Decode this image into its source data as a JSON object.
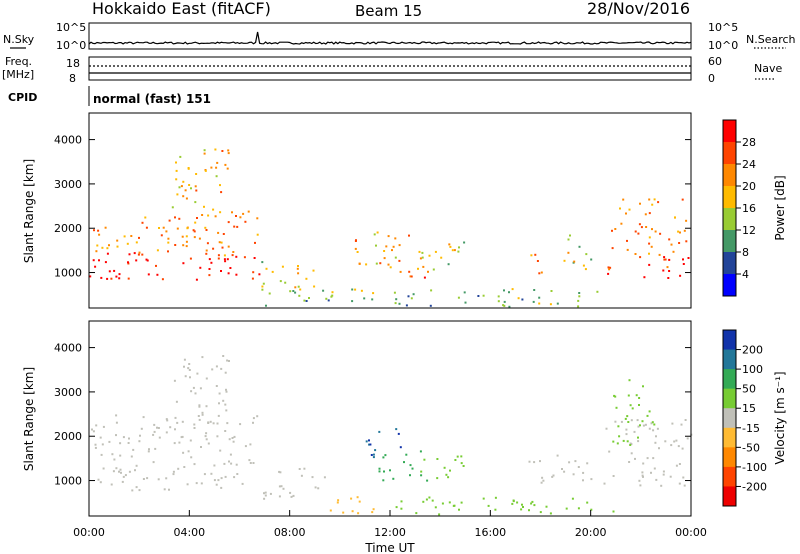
{
  "header": {
    "title": "Hokkaido East (fitACF)",
    "beam": "Beam 15",
    "date": "28/Nov/2016"
  },
  "top_panel": {
    "nsky_label": "N.Sky",
    "nsearch_label": "N.Search",
    "freq_label": "Freq.",
    "freq_unit": "[MHz]",
    "nave_label": "Nave",
    "cpid_label": "CPID",
    "cpid_value": "normal (fast) 151",
    "noise_ticks_left": [
      "10^5",
      "10^0"
    ],
    "noise_ticks_right": [
      "10^5",
      "10^0"
    ],
    "freq_ticks": [
      "18",
      "8"
    ],
    "nave_ticks": [
      "60",
      "0"
    ]
  },
  "power_scale": {
    "label": "Power [dB]",
    "ticks": [
      "28",
      "24",
      "20",
      "16",
      "12",
      "8",
      "4"
    ],
    "colors": [
      "#ff0000",
      "#ff4400",
      "#ff8800",
      "#ffbb00",
      "#99cc33",
      "#449966",
      "#224499",
      "#0000ff"
    ]
  },
  "velocity_scale": {
    "label": "Velocity [m s⁻¹]",
    "ticks": [
      "200",
      "100",
      "50",
      "15",
      "-15",
      "-50",
      "-100",
      "-200"
    ],
    "colors": [
      "#1133aa",
      "#227799",
      "#33aa55",
      "#77cc33",
      "#c0c0b8",
      "#ffbb33",
      "#ff8800",
      "#ff4400",
      "#ee0000"
    ]
  },
  "chart_data": [
    {
      "type": "heatmap",
      "name": "power",
      "xlabel": "",
      "ylabel": "Slant Range [km]",
      "x_range": [
        0,
        24
      ],
      "ylim": [
        200,
        4600
      ],
      "yticks": [
        "1000",
        "2000",
        "3000",
        "4000"
      ],
      "xticks": [
        "00:00",
        "04:00",
        "08:00",
        "12:00",
        "16:00",
        "20:00",
        "00:00"
      ],
      "grid": false,
      "blobs": [
        {
          "t0": 0.0,
          "t1": 6.8,
          "r0": 850,
          "r1": 1500,
          "v": 30
        },
        {
          "t0": 0.0,
          "t1": 6.8,
          "r0": 1400,
          "r1": 2400,
          "v": 22
        },
        {
          "t0": 3.3,
          "t1": 5.6,
          "r0": 2300,
          "r1": 3900,
          "v": 20
        },
        {
          "t0": 6.8,
          "t1": 9.0,
          "r0": 600,
          "r1": 1300,
          "v": 16
        },
        {
          "t0": 10.5,
          "t1": 13.0,
          "r0": 1200,
          "r1": 2000,
          "v": 20
        },
        {
          "t0": 11.5,
          "t1": 13.5,
          "r0": 900,
          "r1": 1300,
          "v": 24
        },
        {
          "t0": 13.0,
          "t1": 15.0,
          "r0": 1000,
          "r1": 1800,
          "v": 16
        },
        {
          "t0": 17.5,
          "t1": 18.2,
          "r0": 900,
          "r1": 1500,
          "v": 22
        },
        {
          "t0": 18.8,
          "t1": 20.0,
          "r0": 1100,
          "r1": 1900,
          "v": 16
        },
        {
          "t0": 20.5,
          "t1": 24.0,
          "r0": 900,
          "r1": 1400,
          "v": 28
        },
        {
          "t0": 20.8,
          "t1": 23.8,
          "r0": 1400,
          "r1": 2700,
          "v": 22
        },
        {
          "t0": 6.8,
          "t1": 20.5,
          "r0": 250,
          "r1": 650,
          "v": 12
        }
      ]
    },
    {
      "type": "heatmap",
      "name": "velocity",
      "xlabel": "Time UT",
      "ylabel": "Slant Range [km]",
      "x_range": [
        0,
        24
      ],
      "ylim": [
        200,
        4600
      ],
      "yticks": [
        "1000",
        "2000",
        "3000",
        "4000"
      ],
      "xticks": [
        "00:00",
        "04:00",
        "08:00",
        "12:00",
        "16:00",
        "20:00",
        "00:00"
      ],
      "grid": false,
      "blobs": [
        {
          "t0": 0.0,
          "t1": 6.8,
          "r0": 800,
          "r1": 2500,
          "v": 0
        },
        {
          "t0": 3.3,
          "t1": 5.6,
          "r0": 2300,
          "r1": 3900,
          "v": 0
        },
        {
          "t0": 6.8,
          "t1": 9.5,
          "r0": 600,
          "r1": 1300,
          "v": 0
        },
        {
          "t0": 11.0,
          "t1": 12.5,
          "r0": 1500,
          "r1": 2200,
          "v": 200
        },
        {
          "t0": 11.5,
          "t1": 13.5,
          "r0": 1000,
          "r1": 1700,
          "v": 80
        },
        {
          "t0": 13.0,
          "t1": 15.0,
          "r0": 1000,
          "r1": 1600,
          "v": 40
        },
        {
          "t0": 9.5,
          "t1": 12.0,
          "r0": 250,
          "r1": 650,
          "v": -40
        },
        {
          "t0": 12.0,
          "t1": 21.0,
          "r0": 250,
          "r1": 650,
          "v": 25
        },
        {
          "t0": 17.5,
          "t1": 20.0,
          "r0": 900,
          "r1": 1600,
          "v": 0
        },
        {
          "t0": 20.5,
          "t1": 24.0,
          "r0": 900,
          "r1": 2400,
          "v": 0
        },
        {
          "t0": 20.8,
          "t1": 22.5,
          "r0": 1800,
          "r1": 3300,
          "v": 30
        }
      ]
    }
  ]
}
